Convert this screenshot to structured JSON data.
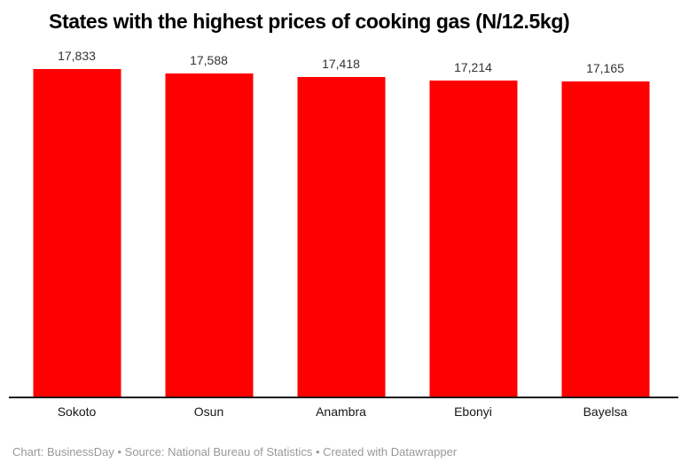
{
  "header": {
    "title": "States with the highest prices of cooking gas (N/12.5kg)"
  },
  "chart_data": {
    "type": "bar",
    "title": "States with the highest prices of cooking gas (N/12.5kg)",
    "categories": [
      "Sokoto",
      "Osun",
      "Anambra",
      "Ebonyi",
      "Bayelsa"
    ],
    "values": [
      17833,
      17588,
      17418,
      17214,
      17165
    ],
    "value_labels": [
      "17,833",
      "17,588",
      "17,418",
      "17,214",
      "17,165"
    ],
    "xlabel": "",
    "ylabel": "",
    "ylim": [
      0,
      17833
    ],
    "grid": false,
    "legend_position": "none",
    "bar_color": "#ff0000"
  },
  "footer": {
    "text": "Chart: BusinessDay • Source: National Bureau of Statistics • Created with Datawrapper"
  },
  "colors": {
    "bar": "#ff0000",
    "title": "#000000",
    "value_label": "#333333",
    "category_label": "#161616",
    "axis_line": "#1a1a1a",
    "footer": "#999999",
    "background": "#ffffff"
  }
}
